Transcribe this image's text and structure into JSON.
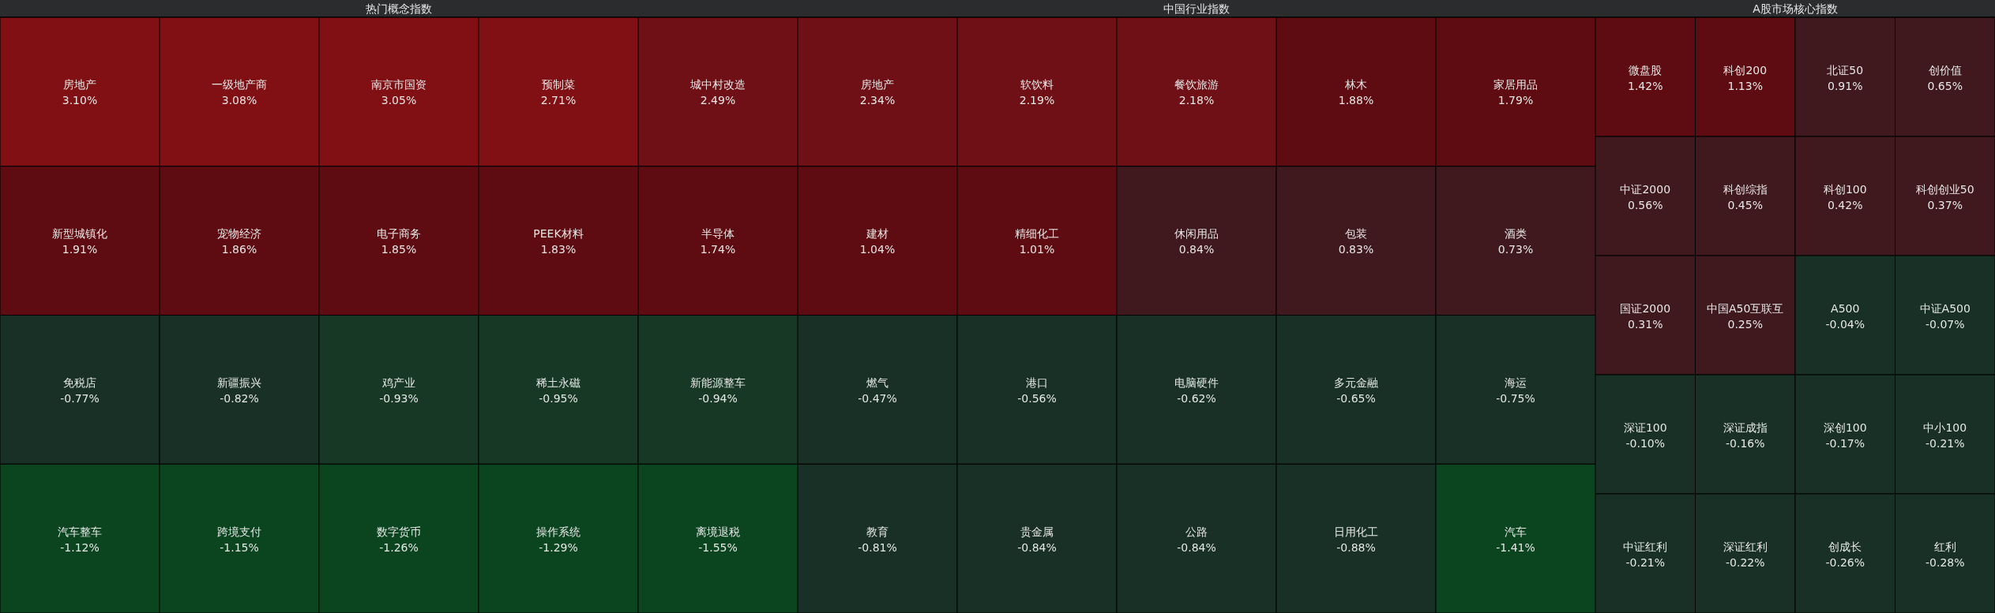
{
  "chart_data": [
    {
      "type": "other",
      "title": "热门概念指数",
      "categories": [
        "房地产",
        "一级地产商",
        "南京市国资",
        "预制菜",
        "城中村改造",
        "新型城镇化",
        "宠物经济",
        "电子商务",
        "PEEK材料",
        "半导体",
        "免税店",
        "新疆振兴",
        "鸡产业",
        "稀土永磁",
        "新能源整车",
        "汽车整车",
        "跨境支付",
        "数字货币",
        "操作系统",
        "离境退税"
      ],
      "values": [
        3.1,
        3.08,
        3.05,
        2.71,
        2.49,
        1.91,
        1.86,
        1.85,
        1.83,
        1.74,
        -0.77,
        -0.82,
        -0.93,
        -0.95,
        -0.94,
        -1.12,
        -1.15,
        -1.26,
        -1.29,
        -1.55
      ],
      "value_labels": [
        "3.10%",
        "3.08%",
        "3.05%",
        "2.71%",
        "2.49%",
        "1.91%",
        "1.86%",
        "1.85%",
        "1.83%",
        "1.74%",
        "-0.77%",
        "-0.82%",
        "-0.93%",
        "-0.95%",
        "-0.94%",
        "-1.12%",
        "-1.15%",
        "-1.26%",
        "-1.29%",
        "-1.55%"
      ]
    },
    {
      "type": "other",
      "title": "中国行业指数",
      "categories": [
        "房地产",
        "软饮料",
        "餐饮旅游",
        "林木",
        "家居用品",
        "建材",
        "精细化工",
        "休闲用品",
        "包装",
        "酒类",
        "燃气",
        "港口",
        "电脑硬件",
        "多元金融",
        "海运",
        "教育",
        "贵金属",
        "公路",
        "日用化工",
        "汽车"
      ],
      "values": [
        2.34,
        2.19,
        2.18,
        1.88,
        1.79,
        1.04,
        1.01,
        0.84,
        0.83,
        0.73,
        -0.47,
        -0.56,
        -0.62,
        -0.65,
        -0.75,
        -0.81,
        -0.84,
        -0.84,
        -0.88,
        -1.41
      ],
      "value_labels": [
        "2.34%",
        "2.19%",
        "2.18%",
        "1.88%",
        "1.79%",
        "1.04%",
        "1.01%",
        "0.84%",
        "0.83%",
        "0.73%",
        "-0.47%",
        "-0.56%",
        "-0.62%",
        "-0.65%",
        "-0.75%",
        "-0.81%",
        "-0.84%",
        "-0.84%",
        "-0.88%",
        "-1.41%"
      ]
    },
    {
      "type": "other",
      "title": "A股市场核心指数",
      "categories": [
        "微盘股",
        "科创200",
        "北证50",
        "创价值",
        "中证2000",
        "科创综指",
        "科创100",
        "科创创业50",
        "国证2000",
        "中国A50互联互",
        "A500",
        "中证A500",
        "深证100",
        "深证成指",
        "深创100",
        "中小100",
        "中证红利",
        "深证红利",
        "创成长",
        "红利"
      ],
      "values": [
        1.42,
        1.13,
        0.91,
        0.65,
        0.56,
        0.45,
        0.42,
        0.37,
        0.31,
        0.25,
        -0.04,
        -0.07,
        -0.1,
        -0.16,
        -0.17,
        -0.21,
        -0.21,
        -0.22,
        -0.26,
        -0.28
      ],
      "value_labels": [
        "1.42%",
        "1.13%",
        "0.91%",
        "0.65%",
        "0.56%",
        "0.45%",
        "0.42%",
        "0.37%",
        "0.31%",
        "0.25%",
        "-0.04%",
        "-0.07%",
        "-0.10%",
        "-0.16%",
        "-0.17%",
        "-0.21%",
        "-0.21%",
        "-0.22%",
        "-0.26%",
        "-0.28%"
      ]
    }
  ]
}
